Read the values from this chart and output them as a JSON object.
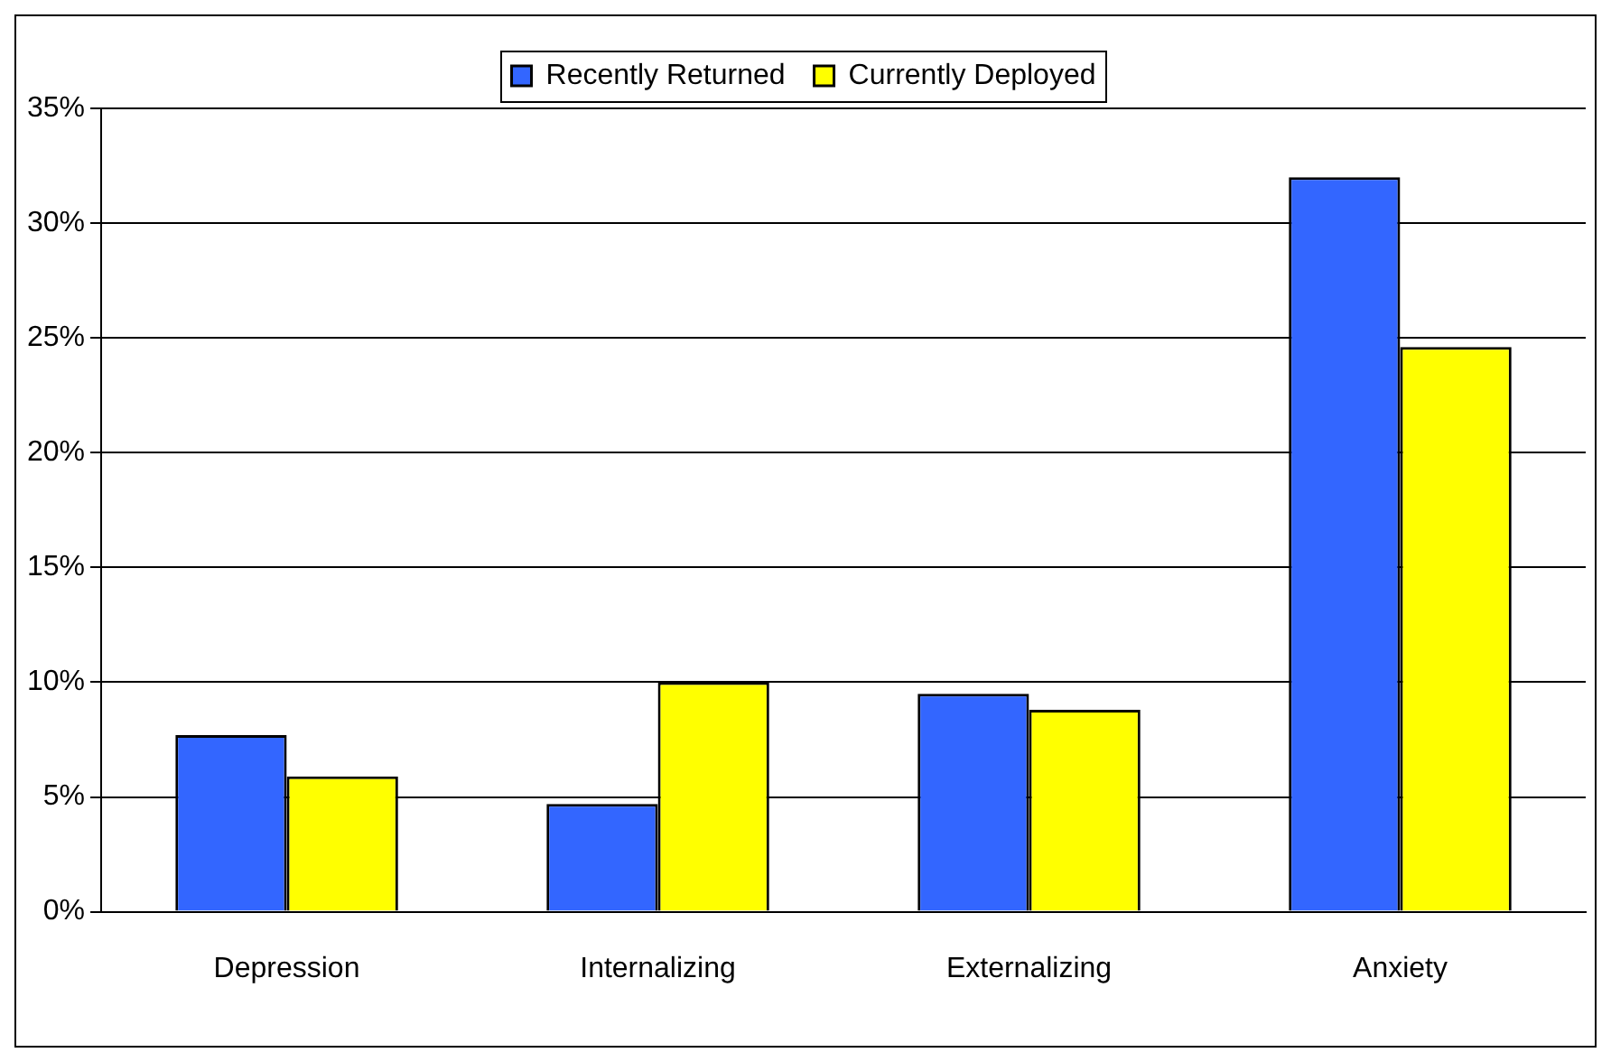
{
  "chart_data": {
    "type": "bar",
    "categories": [
      "Depression",
      "Internalizing",
      "Externalizing",
      "Anxiety"
    ],
    "series": [
      {
        "name": "Recently Returned",
        "color": "#3366ff",
        "values": [
          7.7,
          4.7,
          9.5,
          32.0
        ]
      },
      {
        "name": "Currently Deployed",
        "color": "#ffff00",
        "values": [
          5.9,
          10.0,
          8.8,
          24.6
        ]
      }
    ],
    "ylim": [
      0,
      35
    ],
    "yticks": [
      {
        "value": 0,
        "label": "0%"
      },
      {
        "value": 5,
        "label": "5%"
      },
      {
        "value": 10,
        "label": "10%"
      },
      {
        "value": 15,
        "label": "15%"
      },
      {
        "value": 20,
        "label": "20%"
      },
      {
        "value": 25,
        "label": "25%"
      },
      {
        "value": 30,
        "label": "30%"
      },
      {
        "value": 35,
        "label": "35%"
      }
    ],
    "grid": "y",
    "legend": "top"
  }
}
